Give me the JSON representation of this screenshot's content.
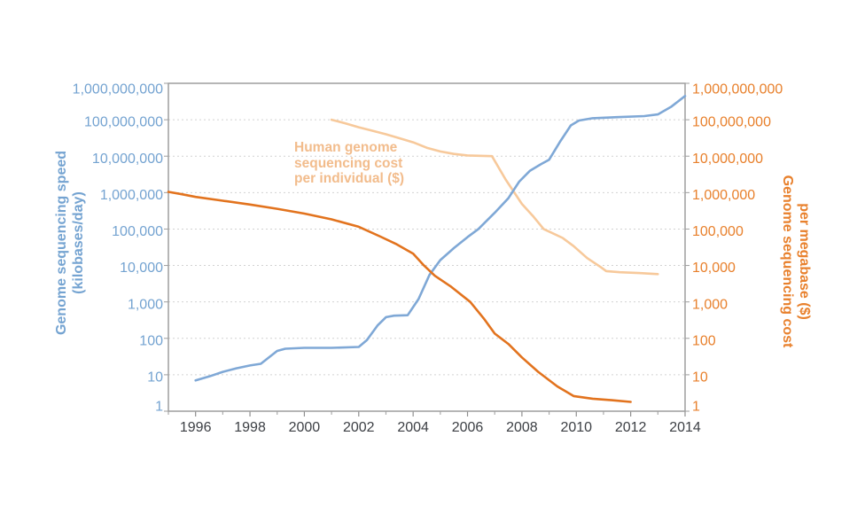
{
  "chart_data": {
    "type": "line",
    "grid": "horizontal-dashed",
    "legend": "none",
    "x_axis": {
      "range": [
        1995,
        2014
      ],
      "minor_tick_interval": 1,
      "tick_years": [
        1996,
        1998,
        2000,
        2002,
        2004,
        2006,
        2008,
        2010,
        2012,
        2014
      ],
      "tick_labels": [
        "1996",
        "1998",
        "2000",
        "2002",
        "2004",
        "2006",
        "2008",
        "2010",
        "2012",
        "2014"
      ],
      "label_color": "#3d4045"
    },
    "y_axis_left": {
      "scale": "log",
      "range": [
        1,
        1000000000
      ],
      "title_lines": [
        "Genome sequencing speed",
        "(kilobases/day)"
      ],
      "tick_values": [
        1000000000,
        100000000,
        10000000,
        1000000,
        100000,
        10000,
        1000,
        100,
        10,
        1
      ],
      "tick_labels": [
        "1,000,000,000",
        "100,000,000",
        "10,000,000",
        "1,000,000",
        "100,000",
        "10,000",
        "1,000",
        "100",
        "10",
        "1"
      ],
      "color": "#74a3d1"
    },
    "y_axis_right": {
      "scale": "log",
      "range": [
        1,
        1000000000
      ],
      "title_lines": [
        "Genome sequencing cost",
        "per megabase ($)"
      ],
      "tick_values": [
        1000000000,
        100000000,
        10000000,
        1000000,
        100000,
        10000,
        1000,
        100,
        10,
        1
      ],
      "tick_labels": [
        "1,000,000,000",
        "100,000,000",
        "10,000,000",
        "1,000,000",
        "100,000",
        "10,000",
        "1,000",
        "100",
        "10",
        "1"
      ],
      "color": "#e8802c"
    },
    "annotation": {
      "lines": [
        "Human genome",
        "sequencing cost",
        "per individual ($)"
      ],
      "color": "#f2bc8c",
      "refers_to": "cost_per_individual"
    },
    "colors": {
      "speed_line": "#7fa8d6",
      "cost_per_megabase_line": "#e2731e",
      "cost_per_individual_line": "#f7c countryside",
      "gridline": "#d2d2d2",
      "plot_border": "#9e9e9e"
    },
    "series": [
      {
        "id": "cost_per_individual",
        "name": "Human genome sequencing cost per individual ($)",
        "axis": "right",
        "color": "#f7c99b",
        "points": [
          [
            2001,
            100000000
          ],
          [
            2001.5,
            80000000
          ],
          [
            2002,
            62000000
          ],
          [
            2002.5,
            50000000
          ],
          [
            2003,
            40000000
          ],
          [
            2003.5,
            31000000
          ],
          [
            2004,
            24000000
          ],
          [
            2004.5,
            17000000
          ],
          [
            2005,
            13500000
          ],
          [
            2005.5,
            11500000
          ],
          [
            2006,
            10500000
          ],
          [
            2006.9,
            10000000
          ],
          [
            2007.4,
            2300000
          ],
          [
            2008,
            490000
          ],
          [
            2008.4,
            230000
          ],
          [
            2008.8,
            100000
          ],
          [
            2009.5,
            57000
          ],
          [
            2009.9,
            34000
          ],
          [
            2010.4,
            16000
          ],
          [
            2010.9,
            9000
          ],
          [
            2011.1,
            7000
          ],
          [
            2011.6,
            6500
          ],
          [
            2012.3,
            6200
          ],
          [
            2013,
            5800
          ]
        ]
      },
      {
        "id": "speed",
        "name": "Genome sequencing speed (kilobases/day)",
        "axis": "left",
        "color": "#7fa8d6",
        "points": [
          [
            1996,
            7
          ],
          [
            1996.5,
            9
          ],
          [
            1997,
            12
          ],
          [
            1997.5,
            15
          ],
          [
            1998,
            18
          ],
          [
            1998.4,
            20
          ],
          [
            1999,
            45
          ],
          [
            1999.3,
            52
          ],
          [
            2000,
            55
          ],
          [
            2001,
            55
          ],
          [
            2002,
            58
          ],
          [
            2002.3,
            90
          ],
          [
            2002.7,
            230
          ],
          [
            2003,
            380
          ],
          [
            2003.3,
            420
          ],
          [
            2003.8,
            430
          ],
          [
            2004.2,
            1200
          ],
          [
            2004.6,
            5500
          ],
          [
            2005,
            14000
          ],
          [
            2005.5,
            30000
          ],
          [
            2006,
            60000
          ],
          [
            2006.4,
            100000
          ],
          [
            2007,
            280000
          ],
          [
            2007.5,
            700000
          ],
          [
            2007.9,
            2000000
          ],
          [
            2008.3,
            4000000
          ],
          [
            2008.7,
            6000000
          ],
          [
            2009,
            8000000
          ],
          [
            2009.4,
            25000000
          ],
          [
            2009.8,
            70000000
          ],
          [
            2010.1,
            95000000
          ],
          [
            2010.6,
            110000000
          ],
          [
            2011.5,
            118000000
          ],
          [
            2012.5,
            126000000
          ],
          [
            2013,
            140000000
          ],
          [
            2013.5,
            230000000
          ],
          [
            2014,
            450000000
          ]
        ]
      },
      {
        "id": "cost_per_megabase",
        "name": "Genome sequencing cost per megabase ($)",
        "axis": "right",
        "color": "#e2731e",
        "points": [
          [
            1995,
            1050000
          ],
          [
            1995.5,
            900000
          ],
          [
            1996,
            760000
          ],
          [
            1997,
            600000
          ],
          [
            1998,
            470000
          ],
          [
            1999,
            360000
          ],
          [
            2000,
            265000
          ],
          [
            2001,
            185000
          ],
          [
            2002,
            115000
          ],
          [
            2002.8,
            62000
          ],
          [
            2003.4,
            38000
          ],
          [
            2004,
            21000
          ],
          [
            2004.4,
            10000
          ],
          [
            2004.8,
            5200
          ],
          [
            2005.4,
            2600
          ],
          [
            2006.1,
            1000
          ],
          [
            2006.6,
            350
          ],
          [
            2007,
            135
          ],
          [
            2007.5,
            70
          ],
          [
            2008,
            30
          ],
          [
            2008.6,
            12
          ],
          [
            2009.3,
            4.8
          ],
          [
            2009.9,
            2.6
          ],
          [
            2010.6,
            2.2
          ],
          [
            2011.3,
            2
          ],
          [
            2012,
            1.8
          ]
        ]
      }
    ]
  }
}
